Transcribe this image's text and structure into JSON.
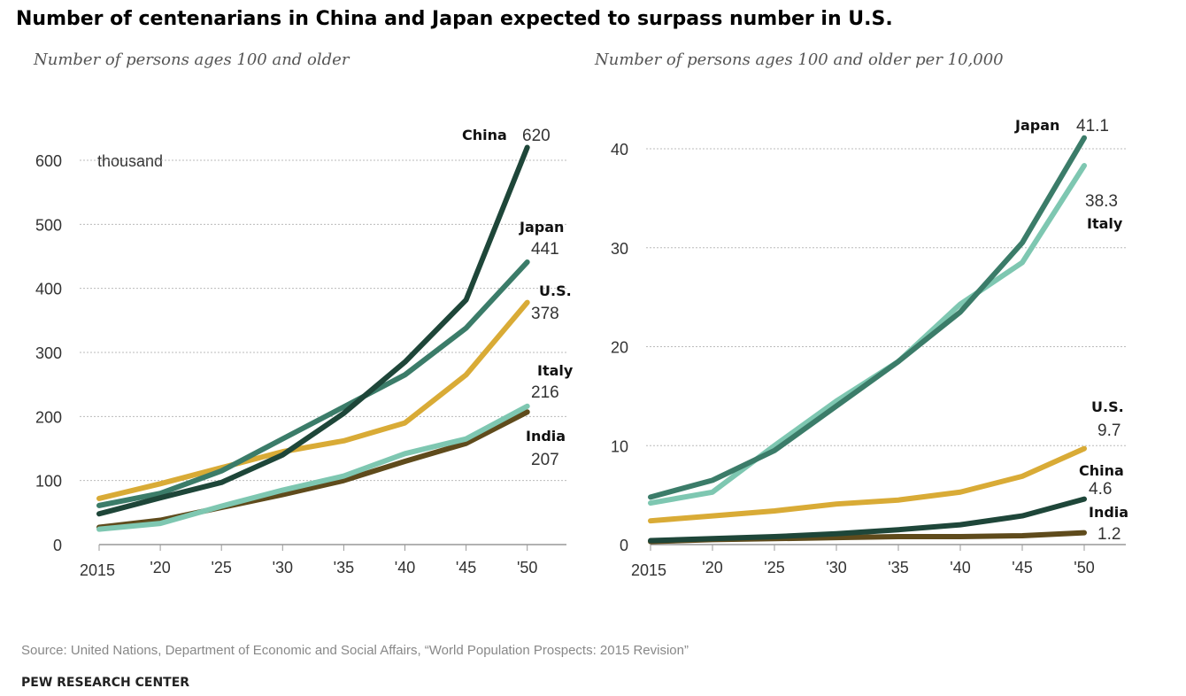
{
  "title": "Number of centenarians in China and Japan expected to surpass number in U.S.",
  "source": "Source: United Nations, Department of Economic and Social Affairs, “World Population Prospects: 2015 Revision”",
  "publisher": "PEW RESEARCH CENTER",
  "chart_data": [
    {
      "type": "line",
      "subtitle": "Number of persons ages 100 and older",
      "unit_label": "thousand",
      "x": [
        2015,
        2020,
        2025,
        2030,
        2035,
        2040,
        2045,
        2050
      ],
      "xtick_labels": [
        "2015",
        "'20",
        "'25",
        "'30",
        "'35",
        "'40",
        "'45",
        "'50"
      ],
      "yticks": [
        "0",
        "100",
        "200",
        "300",
        "400",
        "500",
        "600"
      ],
      "ylim": [
        0,
        600
      ],
      "grid": true,
      "series": [
        {
          "name": "China",
          "end_label": "620",
          "color": "#1e4639",
          "values": [
            48,
            73,
            97,
            140,
            205,
            285,
            382,
            620
          ]
        },
        {
          "name": "Japan",
          "end_label": "441",
          "color": "#3b7c69",
          "values": [
            61,
            80,
            115,
            165,
            215,
            265,
            338,
            441
          ]
        },
        {
          "name": "U.S.",
          "end_label": "378",
          "color": "#d9ab36",
          "values": [
            72,
            95,
            120,
            145,
            162,
            190,
            265,
            378
          ]
        },
        {
          "name": "Italy",
          "end_label": "216",
          "color": "#7ec7b1",
          "values": [
            24,
            33,
            60,
            85,
            107,
            142,
            165,
            216
          ]
        },
        {
          "name": "India",
          "end_label": "207",
          "color": "#5f4b1c",
          "values": [
            27,
            38,
            58,
            78,
            100,
            130,
            158,
            207
          ]
        }
      ]
    },
    {
      "type": "line",
      "subtitle": "Number of persons ages 100 and older per 10,000",
      "x": [
        2015,
        2020,
        2025,
        2030,
        2035,
        2040,
        2045,
        2050
      ],
      "xtick_labels": [
        "2015",
        "'20",
        "'25",
        "'30",
        "'35",
        "'40",
        "'45",
        "'50"
      ],
      "yticks": [
        "0",
        "10",
        "20",
        "30",
        "40"
      ],
      "ylim": [
        0,
        40
      ],
      "grid": true,
      "series": [
        {
          "name": "Japan",
          "end_label": "41.1",
          "color": "#3b7c69",
          "values": [
            4.8,
            6.5,
            9.5,
            14,
            18.5,
            23.5,
            30.5,
            41.1
          ]
        },
        {
          "name": "Italy",
          "end_label": "38.3",
          "color": "#7ec7b1",
          "values": [
            4.2,
            5.3,
            10,
            14.5,
            18.5,
            24.3,
            28.5,
            38.3
          ]
        },
        {
          "name": "U.S.",
          "end_label": "9.7",
          "color": "#d9ab36",
          "values": [
            2.4,
            2.9,
            3.4,
            4.1,
            4.5,
            5.3,
            6.9,
            9.7
          ]
        },
        {
          "name": "China",
          "end_label": "4.6",
          "color": "#1e4639",
          "values": [
            0.4,
            0.6,
            0.8,
            1.1,
            1.5,
            2.0,
            2.9,
            4.6
          ]
        },
        {
          "name": "India",
          "end_label": "1.2",
          "color": "#5f4b1c",
          "values": [
            0.3,
            0.5,
            0.6,
            0.7,
            0.8,
            0.8,
            0.9,
            1.2
          ]
        }
      ]
    }
  ]
}
